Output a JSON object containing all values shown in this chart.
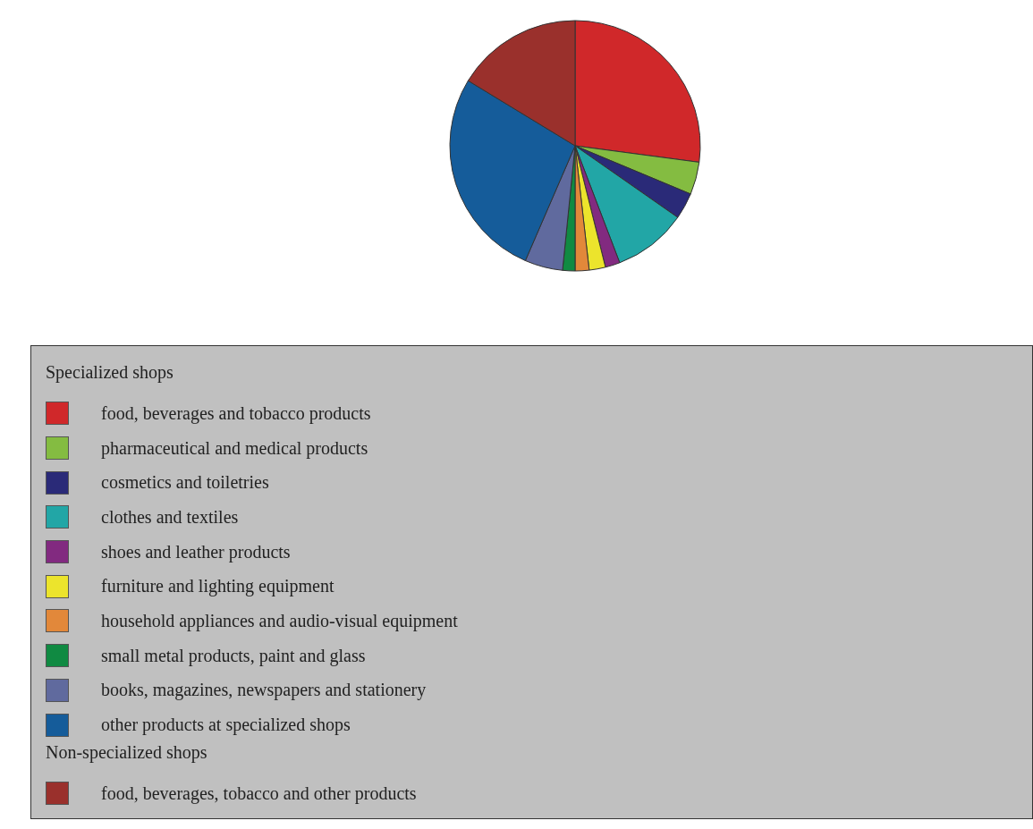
{
  "chart_data": {
    "type": "pie",
    "legend": "bottom",
    "legend_title": "Specialized shops",
    "annotations": [
      "Non-specialized shops"
    ],
    "categories": [
      "food, beverages and tobacco products",
      "pharmaceutical and medical products",
      "cosmetics and toiletries",
      "clothes and textiles",
      "shoes and leather products",
      "furniture and lighting equipment",
      "household appliances and audio-visual equipment",
      "small metal products, paint and glass",
      "books, magazines, newspapers and stationery",
      "other products at specialized shops",
      "food, beverages, tobacco and other products"
    ],
    "values": [
      27.1,
      4.2,
      3.4,
      9.5,
      1.9,
      2.1,
      1.8,
      1.6,
      4.9,
      27.2,
      16.3
    ],
    "colors": [
      "#d0282a",
      "#84bc41",
      "#2a2a78",
      "#22a6a6",
      "#822a80",
      "#ece42c",
      "#e2883a",
      "#108a42",
      "#606a9e",
      "#155c9a",
      "#9a302c"
    ]
  }
}
